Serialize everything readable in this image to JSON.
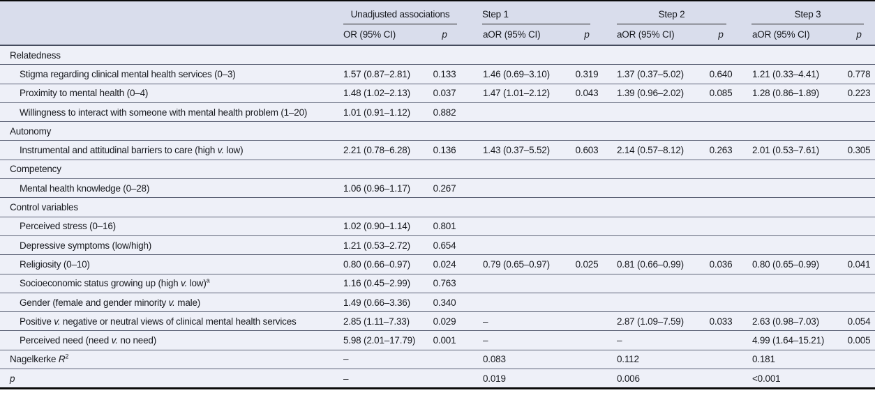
{
  "table": {
    "groups": [
      {
        "label": "Unadjusted associations",
        "or": "OR (95% CI)",
        "p": "*p*"
      },
      {
        "label": "Step 1",
        "or": "aOR (95% CI)",
        "p": "*p*"
      },
      {
        "label": "Step 2",
        "or": "aOR (95% CI)",
        "p": "*p*"
      },
      {
        "label": "Step 3",
        "or": "aOR (95% CI)",
        "p": "*p*"
      }
    ],
    "rows": [
      {
        "type": "section",
        "label": "Relatedness",
        "cells": [
          "",
          "",
          "",
          "",
          "",
          "",
          "",
          ""
        ]
      },
      {
        "type": "item",
        "label": "Stigma regarding clinical mental health services (0–3)",
        "cells": [
          "1.57 (0.87–2.81)",
          "0.133",
          "1.46 (0.69–3.10)",
          "0.319",
          "1.37 (0.37–5.02)",
          "0.640",
          "1.21 (0.33–4.41)",
          "0.778"
        ]
      },
      {
        "type": "item",
        "label": "Proximity to mental health (0–4)",
        "cells": [
          "1.48 (1.02–2.13)",
          "0.037",
          "1.47 (1.01–2.12)",
          "0.043",
          "1.39 (0.96–2.02)",
          "0.085",
          "1.28 (0.86–1.89)",
          "0.223"
        ]
      },
      {
        "type": "item",
        "label": "Willingness to interact with someone with mental health problem (1–20)",
        "cells": [
          "1.01 (0.91–1.12)",
          "0.882",
          "",
          "",
          "",
          "",
          "",
          ""
        ]
      },
      {
        "type": "section",
        "label": "Autonomy",
        "cells": [
          "",
          "",
          "",
          "",
          "",
          "",
          "",
          ""
        ]
      },
      {
        "type": "item",
        "label": "Instrumental and attitudinal barriers to care (high *v.* low)",
        "cells": [
          "2.21 (0.78–6.28)",
          "0.136",
          "1.43 (0.37–5.52)",
          "0.603",
          "2.14 (0.57–8.12)",
          "0.263",
          "2.01 (0.53–7.61)",
          "0.305"
        ]
      },
      {
        "type": "section",
        "label": "Competency",
        "cells": [
          "",
          "",
          "",
          "",
          "",
          "",
          "",
          ""
        ]
      },
      {
        "type": "item",
        "label": "Mental health knowledge (0–28)",
        "cells": [
          "1.06 (0.96–1.17)",
          "0.267",
          "",
          "",
          "",
          "",
          "",
          ""
        ]
      },
      {
        "type": "section",
        "label": "Control variables",
        "cells": [
          "",
          "",
          "",
          "",
          "",
          "",
          "",
          ""
        ]
      },
      {
        "type": "item",
        "label": "Perceived stress (0–16)",
        "cells": [
          "1.02 (0.90–1.14)",
          "0.801",
          "",
          "",
          "",
          "",
          "",
          ""
        ]
      },
      {
        "type": "item",
        "label": "Depressive symptoms (low/high)",
        "cells": [
          "1.21 (0.53–2.72)",
          "0.654",
          "",
          "",
          "",
          "",
          "",
          ""
        ]
      },
      {
        "type": "item",
        "label": "Religiosity (0–10)",
        "cells": [
          "0.80 (0.66–0.97)",
          "0.024",
          "0.79 (0.65–0.97)",
          "0.025",
          "0.81 (0.66–0.99)",
          "0.036",
          "0.80 (0.65–0.99)",
          "0.041"
        ]
      },
      {
        "type": "item",
        "label": "Socioeconomic status growing up (high *v.* low)^a",
        "cells": [
          "1.16 (0.45–2.99)",
          "0.763",
          "",
          "",
          "",
          "",
          "",
          ""
        ]
      },
      {
        "type": "item",
        "label": "Gender (female and gender minority *v.* male)",
        "cells": [
          "1.49 (0.66–3.36)",
          "0.340",
          "",
          "",
          "",
          "",
          "",
          ""
        ]
      },
      {
        "type": "item",
        "label": "Positive *v.* negative or neutral views of clinical mental health services",
        "cells": [
          "2.85 (1.11–7.33)",
          "0.029",
          "–",
          "",
          "2.87 (1.09–7.59)",
          "0.033",
          "2.63 (0.98–7.03)",
          "0.054"
        ]
      },
      {
        "type": "item",
        "label": "Perceived need (need *v.* no need)",
        "cells": [
          "5.98 (2.01–17.79)",
          "0.001",
          "–",
          "",
          "–",
          "",
          "4.99 (1.64–15.21)",
          "0.005"
        ]
      },
      {
        "type": "stat",
        "label": "Nagelkerke *R*^2",
        "cells": [
          "–",
          "",
          "0.083",
          "",
          "0.112",
          "",
          "0.181",
          ""
        ]
      },
      {
        "type": "stat",
        "label": "*p*",
        "cells": [
          "–",
          "",
          "0.019",
          "",
          "0.006",
          "",
          "<0.001",
          ""
        ]
      }
    ],
    "colors": {
      "header_bg": "#d9ddec",
      "body_bg": "#eef0f8",
      "row_line": "#5d6377",
      "frame": "#0b0b0b"
    }
  }
}
